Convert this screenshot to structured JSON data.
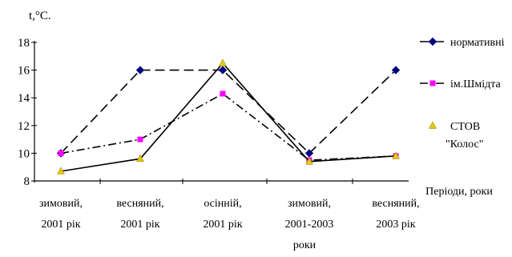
{
  "chart_data": {
    "type": "line",
    "ylabel": "t,°C.",
    "xlabel": "Періоди, роки",
    "xlabel_extra": "роки",
    "ylim": [
      8,
      18
    ],
    "yticks": [
      "8",
      "10",
      "12",
      "14",
      "16",
      "18"
    ],
    "categories": [
      [
        "зимовий,",
        "2001 рік"
      ],
      [
        "весняний,",
        "2001 рік"
      ],
      [
        "осінній,",
        "2001 рік"
      ],
      [
        "зимовий,",
        "2001-2003"
      ],
      [
        "весняний,",
        "2003 рік"
      ]
    ],
    "series": [
      {
        "name": "нормативні",
        "values": [
          10,
          16,
          16,
          10,
          16
        ],
        "color": "#000080",
        "marker": "diamond",
        "dash": "long-dash"
      },
      {
        "name": "ім.Шмідта",
        "values": [
          10,
          11,
          14.3,
          9.5,
          9.8
        ],
        "color": "#ff00ff",
        "marker": "square",
        "dash": "dash-dot"
      },
      {
        "name": "СТОВ \"Колос\"",
        "values": [
          8.7,
          9.6,
          16.5,
          9.4,
          9.8
        ],
        "color": "#e6c800",
        "marker": "triangle",
        "dash": "solid"
      }
    ],
    "legend_position": "right"
  }
}
